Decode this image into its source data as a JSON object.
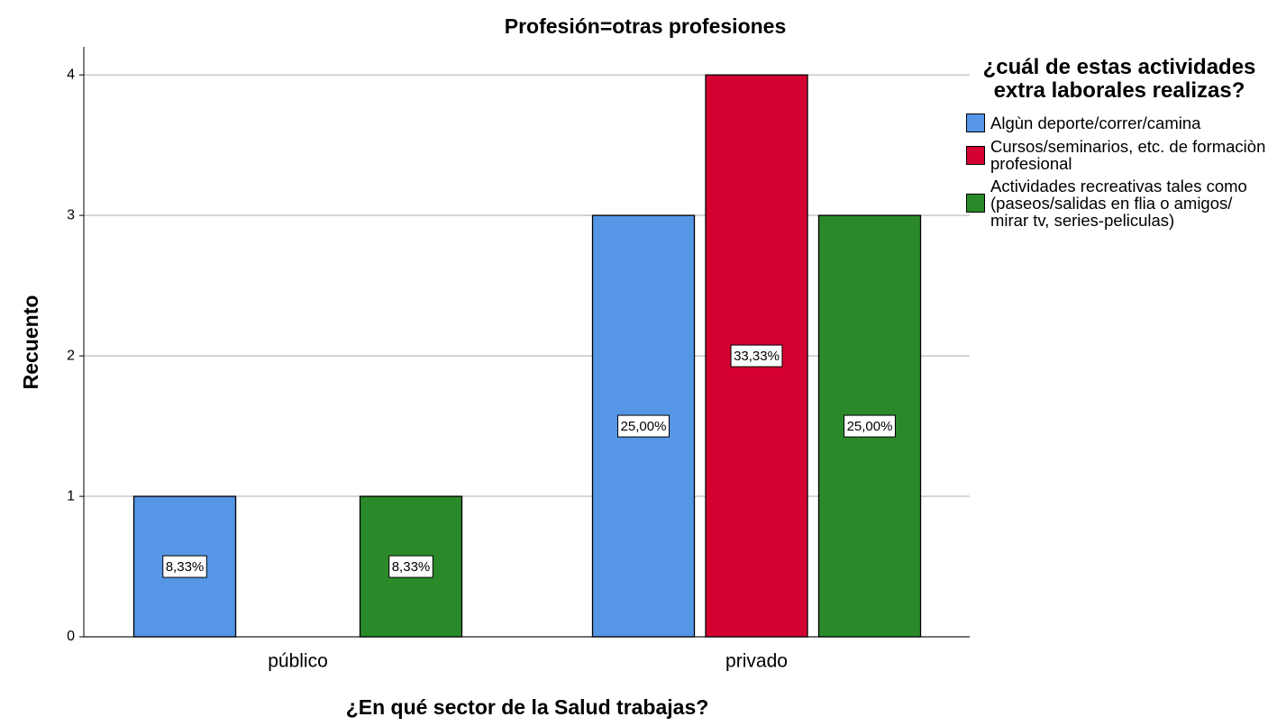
{
  "chart_data": {
    "type": "bar",
    "title": "Profesión=otras profesiones",
    "x_label": "¿En qué sector de la Salud trabajas?",
    "y_label": "Recuento",
    "legend_title": "¿cuál de estas actividades extra laborales realizas?",
    "categories": [
      "público",
      "privado"
    ],
    "series": [
      {
        "name": "Algùn deporte/correr/camina",
        "color": "#5596e6",
        "values": [
          1,
          3
        ],
        "data_labels": [
          "8,33%",
          "25,00%"
        ]
      },
      {
        "name": "Cursos/seminarios, etc. de formaciòn profesional",
        "color": "#d50032",
        "values": [
          null,
          4
        ],
        "data_labels": [
          null,
          "33,33%"
        ]
      },
      {
        "name": "Actividades recreativas tales como (paseos/salidas en flia o amigos/ mirar tv, series-peliculas)",
        "color": "#2a8a2a",
        "values": [
          1,
          3
        ],
        "data_labels": [
          "8,33%",
          "25,00%"
        ]
      }
    ],
    "ylim": [
      0,
      4.2
    ],
    "yticks": [
      0,
      1,
      2,
      3,
      4
    ],
    "grid": true,
    "legend": "right"
  }
}
